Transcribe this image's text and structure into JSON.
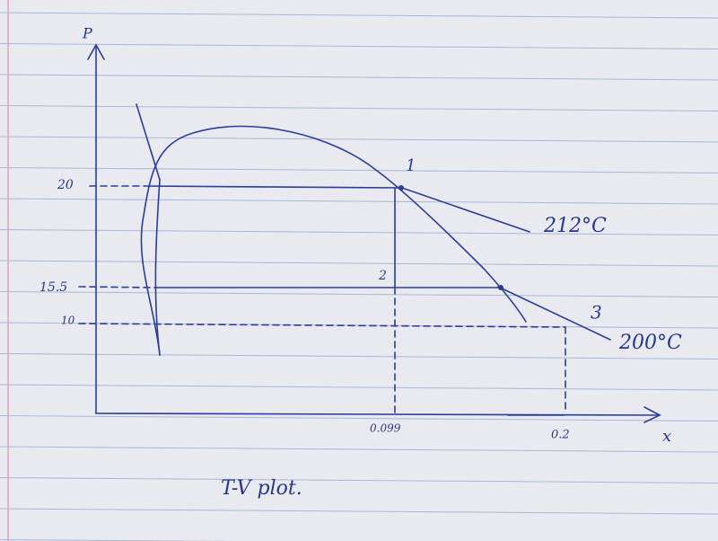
{
  "axes": {
    "y_label": "P",
    "x_label": "x"
  },
  "y_ticks": [
    "20",
    "15.5",
    "10"
  ],
  "x_ticks": [
    "0.099",
    "0.2"
  ],
  "points": [
    "1",
    "2",
    "3"
  ],
  "isotherms": [
    "212°C",
    "200°C"
  ],
  "caption": "T-V plot."
}
